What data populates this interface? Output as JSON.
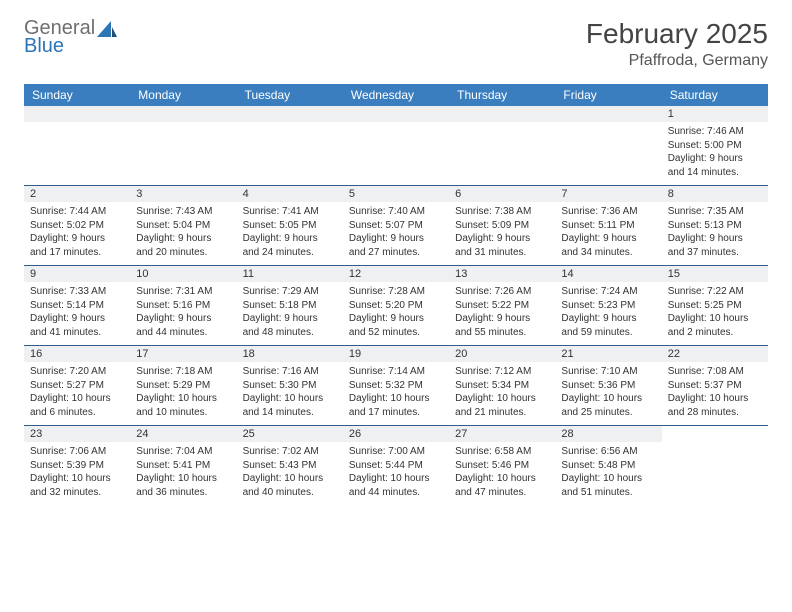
{
  "logo": {
    "word1": "General",
    "word2": "Blue",
    "sail_color": "#2e75b6",
    "gray": "#6f6f6f"
  },
  "title": "February 2025",
  "location": "Pfaffroda, Germany",
  "colors": {
    "header_bg": "#3a7ebf",
    "header_text": "#ffffff",
    "daynum_bg": "#eef0f2",
    "rule": "#2e5f8a",
    "text": "#333333"
  },
  "dayNames": [
    "Sunday",
    "Monday",
    "Tuesday",
    "Wednesday",
    "Thursday",
    "Friday",
    "Saturday"
  ],
  "leadingBlanks": 6,
  "days": [
    {
      "n": 1,
      "sunrise": "7:46 AM",
      "sunset": "5:00 PM",
      "daylight": "9 hours and 14 minutes."
    },
    {
      "n": 2,
      "sunrise": "7:44 AM",
      "sunset": "5:02 PM",
      "daylight": "9 hours and 17 minutes."
    },
    {
      "n": 3,
      "sunrise": "7:43 AM",
      "sunset": "5:04 PM",
      "daylight": "9 hours and 20 minutes."
    },
    {
      "n": 4,
      "sunrise": "7:41 AM",
      "sunset": "5:05 PM",
      "daylight": "9 hours and 24 minutes."
    },
    {
      "n": 5,
      "sunrise": "7:40 AM",
      "sunset": "5:07 PM",
      "daylight": "9 hours and 27 minutes."
    },
    {
      "n": 6,
      "sunrise": "7:38 AM",
      "sunset": "5:09 PM",
      "daylight": "9 hours and 31 minutes."
    },
    {
      "n": 7,
      "sunrise": "7:36 AM",
      "sunset": "5:11 PM",
      "daylight": "9 hours and 34 minutes."
    },
    {
      "n": 8,
      "sunrise": "7:35 AM",
      "sunset": "5:13 PM",
      "daylight": "9 hours and 37 minutes."
    },
    {
      "n": 9,
      "sunrise": "7:33 AM",
      "sunset": "5:14 PM",
      "daylight": "9 hours and 41 minutes."
    },
    {
      "n": 10,
      "sunrise": "7:31 AM",
      "sunset": "5:16 PM",
      "daylight": "9 hours and 44 minutes."
    },
    {
      "n": 11,
      "sunrise": "7:29 AM",
      "sunset": "5:18 PM",
      "daylight": "9 hours and 48 minutes."
    },
    {
      "n": 12,
      "sunrise": "7:28 AM",
      "sunset": "5:20 PM",
      "daylight": "9 hours and 52 minutes."
    },
    {
      "n": 13,
      "sunrise": "7:26 AM",
      "sunset": "5:22 PM",
      "daylight": "9 hours and 55 minutes."
    },
    {
      "n": 14,
      "sunrise": "7:24 AM",
      "sunset": "5:23 PM",
      "daylight": "9 hours and 59 minutes."
    },
    {
      "n": 15,
      "sunrise": "7:22 AM",
      "sunset": "5:25 PM",
      "daylight": "10 hours and 2 minutes."
    },
    {
      "n": 16,
      "sunrise": "7:20 AM",
      "sunset": "5:27 PM",
      "daylight": "10 hours and 6 minutes."
    },
    {
      "n": 17,
      "sunrise": "7:18 AM",
      "sunset": "5:29 PM",
      "daylight": "10 hours and 10 minutes."
    },
    {
      "n": 18,
      "sunrise": "7:16 AM",
      "sunset": "5:30 PM",
      "daylight": "10 hours and 14 minutes."
    },
    {
      "n": 19,
      "sunrise": "7:14 AM",
      "sunset": "5:32 PM",
      "daylight": "10 hours and 17 minutes."
    },
    {
      "n": 20,
      "sunrise": "7:12 AM",
      "sunset": "5:34 PM",
      "daylight": "10 hours and 21 minutes."
    },
    {
      "n": 21,
      "sunrise": "7:10 AM",
      "sunset": "5:36 PM",
      "daylight": "10 hours and 25 minutes."
    },
    {
      "n": 22,
      "sunrise": "7:08 AM",
      "sunset": "5:37 PM",
      "daylight": "10 hours and 28 minutes."
    },
    {
      "n": 23,
      "sunrise": "7:06 AM",
      "sunset": "5:39 PM",
      "daylight": "10 hours and 32 minutes."
    },
    {
      "n": 24,
      "sunrise": "7:04 AM",
      "sunset": "5:41 PM",
      "daylight": "10 hours and 36 minutes."
    },
    {
      "n": 25,
      "sunrise": "7:02 AM",
      "sunset": "5:43 PM",
      "daylight": "10 hours and 40 minutes."
    },
    {
      "n": 26,
      "sunrise": "7:00 AM",
      "sunset": "5:44 PM",
      "daylight": "10 hours and 44 minutes."
    },
    {
      "n": 27,
      "sunrise": "6:58 AM",
      "sunset": "5:46 PM",
      "daylight": "10 hours and 47 minutes."
    },
    {
      "n": 28,
      "sunrise": "6:56 AM",
      "sunset": "5:48 PM",
      "daylight": "10 hours and 51 minutes."
    }
  ],
  "labels": {
    "sunrise": "Sunrise:",
    "sunset": "Sunset:",
    "daylight": "Daylight:"
  }
}
